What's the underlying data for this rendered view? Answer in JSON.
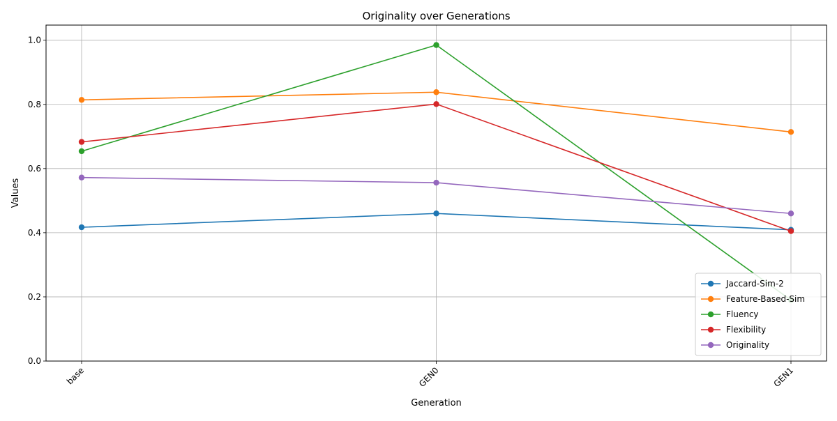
{
  "chart_data": {
    "type": "line",
    "title": "Originality over Generations",
    "xlabel": "Generation",
    "ylabel": "Values",
    "categories": [
      "base",
      "GEN0",
      "GEN1"
    ],
    "ylim": [
      0.0,
      1.0
    ],
    "yticks": [
      "0.0",
      "0.2",
      "0.4",
      "0.6",
      "0.8",
      "1.0"
    ],
    "grid": true,
    "legend_position": "lower-right",
    "series": [
      {
        "name": "Jaccard-Sim-2",
        "color": "#1f77b4",
        "values": [
          0.417,
          0.46,
          0.409
        ]
      },
      {
        "name": "Feature-Based-Sim",
        "color": "#ff7f0e",
        "values": [
          0.814,
          0.838,
          0.714
        ]
      },
      {
        "name": "Fluency",
        "color": "#2ca02c",
        "values": [
          0.654,
          0.985,
          0.19
        ]
      },
      {
        "name": "Flexibility",
        "color": "#d62728",
        "values": [
          0.683,
          0.801,
          0.405
        ]
      },
      {
        "name": "Originality",
        "color": "#9467bd",
        "values": [
          0.572,
          0.556,
          0.46
        ]
      }
    ]
  }
}
